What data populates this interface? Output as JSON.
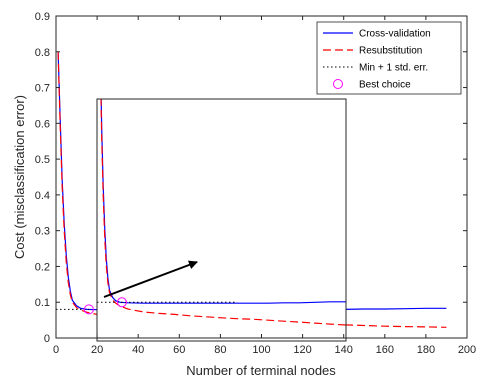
{
  "chart_data": {
    "type": "line",
    "title": "",
    "xlabel": "Number of terminal nodes",
    "ylabel": "Cost (misclassification error)",
    "xlim": [
      0,
      200
    ],
    "ylim": [
      0,
      0.9
    ],
    "xticks": [
      0,
      20,
      40,
      60,
      80,
      100,
      120,
      140,
      160,
      180,
      200
    ],
    "xtick_labels": [
      "0",
      "20",
      "40",
      "60",
      "80",
      "100",
      "120",
      "140",
      "160",
      "180",
      "200"
    ],
    "yticks": [
      0,
      0.1,
      0.2,
      0.3,
      0.4,
      0.5,
      0.6,
      0.7,
      0.8,
      0.9
    ],
    "ytick_labels": [
      "0",
      "0.1",
      "0.2",
      "0.3",
      "0.4",
      "0.5",
      "0.6",
      "0.7",
      "0.8",
      "0.9"
    ],
    "grid": false,
    "legend_position": "top-right",
    "series": [
      {
        "name": "Cross-validation",
        "style": "solid",
        "color": "#0000ff",
        "x": [
          1,
          2,
          3,
          4,
          5,
          6,
          7,
          8,
          10,
          12,
          15,
          20,
          30,
          40,
          50,
          60,
          70,
          80,
          90,
          100,
          110,
          120,
          130,
          140,
          150,
          160,
          170,
          180,
          190
        ],
        "y": [
          0.8,
          0.62,
          0.44,
          0.32,
          0.23,
          0.17,
          0.13,
          0.105,
          0.09,
          0.083,
          0.08,
          0.079,
          0.078,
          0.078,
          0.078,
          0.078,
          0.078,
          0.078,
          0.078,
          0.078,
          0.078,
          0.079,
          0.079,
          0.08,
          0.081,
          0.081,
          0.082,
          0.083,
          0.083
        ]
      },
      {
        "name": "Resubstitution",
        "style": "dashed",
        "color": "#ff0000",
        "x": [
          1,
          2,
          3,
          4,
          5,
          6,
          7,
          8,
          10,
          12,
          15,
          20,
          30,
          40,
          50,
          60,
          70,
          80,
          90,
          100,
          110,
          120,
          130,
          140,
          150,
          160,
          170,
          180,
          190
        ],
        "y": [
          0.8,
          0.6,
          0.42,
          0.3,
          0.21,
          0.155,
          0.12,
          0.1,
          0.085,
          0.078,
          0.072,
          0.066,
          0.06,
          0.057,
          0.055,
          0.052,
          0.05,
          0.048,
          0.046,
          0.045,
          0.043,
          0.041,
          0.039,
          0.037,
          0.035,
          0.033,
          0.032,
          0.031,
          0.03
        ]
      },
      {
        "name": "Min + 1 std. err.",
        "style": "dotted",
        "color": "#000000",
        "x": [
          0,
          16
        ],
        "y": [
          0.08,
          0.08
        ]
      },
      {
        "name": "Best choice",
        "style": "marker",
        "color": "#ff00ff",
        "x": [
          16
        ],
        "y": [
          0.08
        ]
      }
    ]
  }
}
